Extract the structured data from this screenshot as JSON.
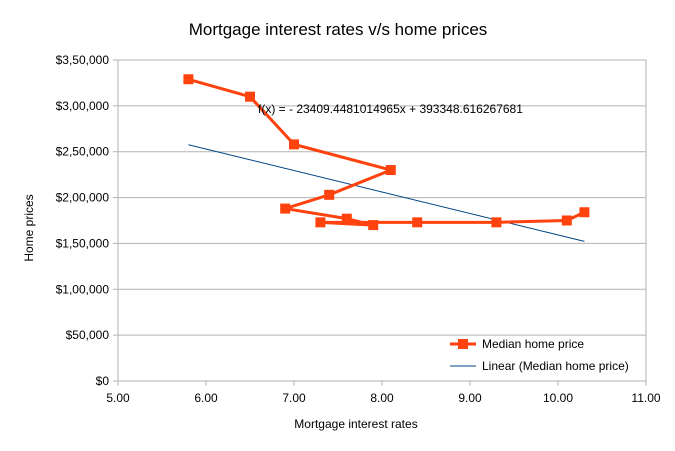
{
  "chart_data": {
    "type": "scatter",
    "title": "Mortgage interest rates v/s home prices",
    "xlabel": "Mortgage interest rates",
    "ylabel": "Home prices",
    "xlim": [
      5.0,
      11.0
    ],
    "ylim": [
      0,
      350000
    ],
    "x_ticks": [
      "5.00",
      "6.00",
      "7.00",
      "8.00",
      "9.00",
      "10.00",
      "11.00"
    ],
    "y_ticks": [
      "$0",
      "$50,000",
      "$1,00,000",
      "$1,50,000",
      "$2,00,000",
      "$2,50,000",
      "$3,00,000",
      "$3,50,000"
    ],
    "grid": "horizontal",
    "legend_position": "bottom-right",
    "series": [
      {
        "name": "Median home price",
        "color": "#ff420e",
        "marker": "square",
        "connected": true,
        "points": [
          {
            "x": 5.8,
            "y": 329000
          },
          {
            "x": 6.5,
            "y": 310000
          },
          {
            "x": 7.0,
            "y": 258000
          },
          {
            "x": 8.1,
            "y": 230000
          },
          {
            "x": 7.4,
            "y": 203000
          },
          {
            "x": 6.9,
            "y": 188000
          },
          {
            "x": 7.6,
            "y": 177000
          },
          {
            "x": 7.9,
            "y": 170000
          },
          {
            "x": 7.3,
            "y": 173000
          },
          {
            "x": 8.4,
            "y": 173000
          },
          {
            "x": 9.3,
            "y": 173000
          },
          {
            "x": 10.1,
            "y": 175000
          },
          {
            "x": 10.3,
            "y": 184000
          }
        ]
      }
    ],
    "trendline": {
      "name": "Linear (Median home price)",
      "color": "#004586",
      "slope": -23409.4481014965,
      "intercept": 393348.616267681,
      "x_range": [
        5.8,
        10.3
      ],
      "equation_label": "f(x) =  - 23409.4481014965x + 393348.616267681"
    }
  }
}
